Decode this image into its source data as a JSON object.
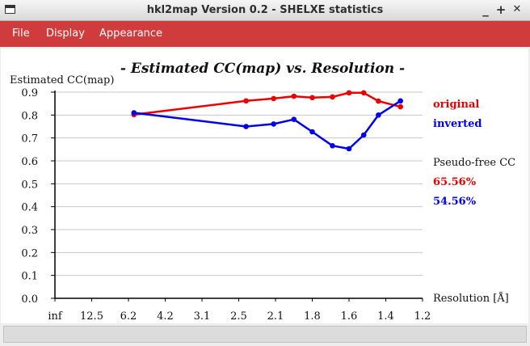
{
  "window": {
    "title": "hkl2map Version 0.2 - SHELXE statistics",
    "controls": {
      "minimize": "_",
      "maximize": "+",
      "close": "✕"
    }
  },
  "menu": [
    "File",
    "Display",
    "Appearance"
  ],
  "chart_data": {
    "type": "line",
    "title": "- Estimated CC(map) vs. Resolution -",
    "ylabel": "Estimated CC(map)",
    "xlabel": "Resolution [Å]",
    "ylim": [
      0.0,
      0.9
    ],
    "yticks": [
      "0.9",
      "0.8",
      "0.7",
      "0.6",
      "0.5",
      "0.4",
      "0.3",
      "0.2",
      "0.1",
      "0.0"
    ],
    "xtick_labels": [
      "inf",
      "12.5",
      "6.2",
      "4.2",
      "3.1",
      "2.5",
      "2.1",
      "1.8",
      "1.6",
      "1.4",
      "1.2"
    ],
    "grid": true,
    "series": [
      {
        "name": "original",
        "color": "#ee0000",
        "x": [
          2.15,
          5.2,
          5.95,
          6.5,
          7.0,
          7.55,
          8.0,
          8.4,
          8.8,
          9.4
        ],
        "values": [
          0.802,
          0.862,
          0.872,
          0.882,
          0.876,
          0.879,
          0.897,
          0.897,
          0.861,
          0.836
        ]
      },
      {
        "name": "inverted",
        "color": "#0000ee",
        "x": [
          2.15,
          5.2,
          5.95,
          6.5,
          7.0,
          7.55,
          8.0,
          8.4,
          8.8,
          9.4
        ],
        "values": [
          0.81,
          0.75,
          0.761,
          0.781,
          0.727,
          0.666,
          0.653,
          0.713,
          0.8,
          0.862
        ]
      }
    ],
    "legend": {
      "pseudo_free_label": "Pseudo-free CC",
      "original_value": "65.56%",
      "inverted_value": "54.56%"
    }
  }
}
